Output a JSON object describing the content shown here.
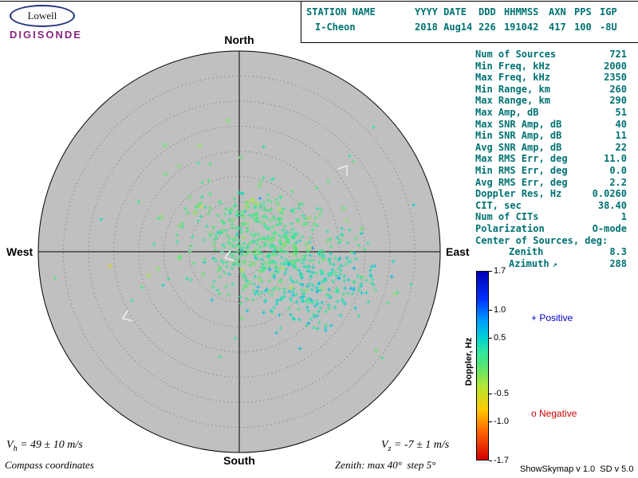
{
  "header": {
    "logo": {
      "line1": "Lowell",
      "line2": "DIGISONDE"
    },
    "columns": [
      {
        "label": "STATION NAME",
        "value": "I-Cheon"
      },
      {
        "label": "YYYY DATE",
        "value": "2018 Aug14"
      },
      {
        "label": "DDD",
        "value": "226"
      },
      {
        "label": "HHMMSS",
        "value": "191042"
      },
      {
        "label": "AXN",
        "value": "417"
      },
      {
        "label": "PPS",
        "value": "100"
      },
      {
        "label": "IGP",
        "value": "-8U"
      }
    ]
  },
  "stats": {
    "rows": [
      {
        "label": "Num of Sources",
        "value": "721"
      },
      {
        "label": "Min Freq, kHz",
        "value": "2000"
      },
      {
        "label": "Max Freq, kHz",
        "value": "2350"
      },
      {
        "label": "Min Range, km",
        "value": "260"
      },
      {
        "label": "Max Range, km",
        "value": "290"
      },
      {
        "label": "Max Amp, dB",
        "value": "51"
      },
      {
        "label": "Max SNR Amp, dB",
        "value": "40"
      },
      {
        "label": "Min SNR Amp, dB",
        "value": "11"
      },
      {
        "label": "Avg SNR Amp, dB",
        "value": "22"
      },
      {
        "label": "Max RMS Err, deg",
        "value": "11.0"
      },
      {
        "label": "Min RMS Err, deg",
        "value": "0.0"
      },
      {
        "label": "Avg RMS Err, deg",
        "value": "2.2"
      },
      {
        "label": "Doppler Res, Hz",
        "value": "0.0260"
      },
      {
        "label": "CIT, sec",
        "value": "38.40"
      },
      {
        "label": "Num of CITs",
        "value": "1"
      },
      {
        "label": "Polarization",
        "value": "O-mode"
      },
      {
        "label": "Center of Sources, deg:",
        "value": ""
      },
      {
        "label": "Zenith",
        "value": "8.3",
        "indent": true
      },
      {
        "label": "Azimuth",
        "value": "288",
        "indent": true,
        "icon": "azimuth_arrow"
      }
    ]
  },
  "icons": {
    "azimuth_arrow": "↗"
  },
  "chart_data": {
    "type": "scatter",
    "projection": "polar_skymap_compass",
    "compass": {
      "north": "North",
      "south": "South",
      "east": "East",
      "west": "West"
    },
    "zenith_max_deg": 40,
    "zenith_step_deg": 5,
    "num_sources": 721,
    "center_of_sources": {
      "zenith_deg": 8.3,
      "azimuth_deg": 288
    },
    "marker_positive": "+",
    "marker_negative": "o",
    "colorbar": {
      "label": "Doppler, Hz",
      "min": -1.7,
      "max": 1.7,
      "ticks": [
        "1.7",
        "1.0",
        "0.5",
        "-0.5",
        "-1.0",
        "-1.7"
      ],
      "tick_values": [
        1.7,
        1.0,
        0.5,
        -0.5,
        -1.0,
        -1.7
      ],
      "stops": [
        [
          1.7,
          "#0000b4"
        ],
        [
          1.2,
          "#0032ff"
        ],
        [
          0.8,
          "#00a0ff"
        ],
        [
          0.5,
          "#00d2d2"
        ],
        [
          0.25,
          "#32e6a0"
        ],
        [
          0.0,
          "#55e673"
        ],
        [
          -0.4,
          "#b9e632"
        ],
        [
          -0.8,
          "#ffc800"
        ],
        [
          -1.2,
          "#ff6400"
        ],
        [
          -1.7,
          "#d70000"
        ]
      ]
    },
    "legend": {
      "positive_label": "+ Positive",
      "negative_label": "o Negative",
      "positive_color": "#0000cd",
      "negative_color": "#cd0000"
    },
    "seed": 20180814,
    "clusters": [
      {
        "x_east_deg": 4.5,
        "y_north_deg": 2.5,
        "sx_deg": 6.5,
        "sy_deg": 5.0,
        "count": 360,
        "doppler_mean": 0.12,
        "doppler_sd": 0.1
      },
      {
        "x_east_deg": 15.0,
        "y_north_deg": -6.5,
        "sx_deg": 6.0,
        "sy_deg": 4.5,
        "count": 230,
        "doppler_mean": 0.35,
        "doppler_sd": 0.15
      },
      {
        "x_east_deg": 4.0,
        "y_north_deg": 1.0,
        "sx_deg": 13.0,
        "sy_deg": 10.5,
        "count": 131,
        "doppler_mean": 0.1,
        "doppler_sd": 0.25
      }
    ],
    "arrows": [
      {
        "x_east_deg": 21.0,
        "y_north_deg": 16.5,
        "rotation_deg": -55
      },
      {
        "x_east_deg": -22.5,
        "y_north_deg": -13.0,
        "rotation_deg": 160
      },
      {
        "x_east_deg": -2.1,
        "y_north_deg": -1.0,
        "rotation_deg": 160
      }
    ]
  },
  "footer": {
    "vh": {
      "symbol": "V",
      "subscript": "h",
      "value": " = 49 ± 10 m/s"
    },
    "vz": {
      "symbol": "V",
      "subscript": "z",
      "value": " = -7 ± 1 m/s"
    },
    "compass_note": "Compass coordinates",
    "zenith_note": "Zenith: max 40°  step 5°",
    "version": "ShowSkymap v 1.0  SD v 5.0"
  },
  "colors": {
    "accent_teal": "#007272",
    "logo_purple": "#87257f",
    "plot_background": "#c0c0c0",
    "grid_gray": "#7d7d7d",
    "positive_blue": "#0000cd",
    "negative_red": "#cd0000"
  }
}
